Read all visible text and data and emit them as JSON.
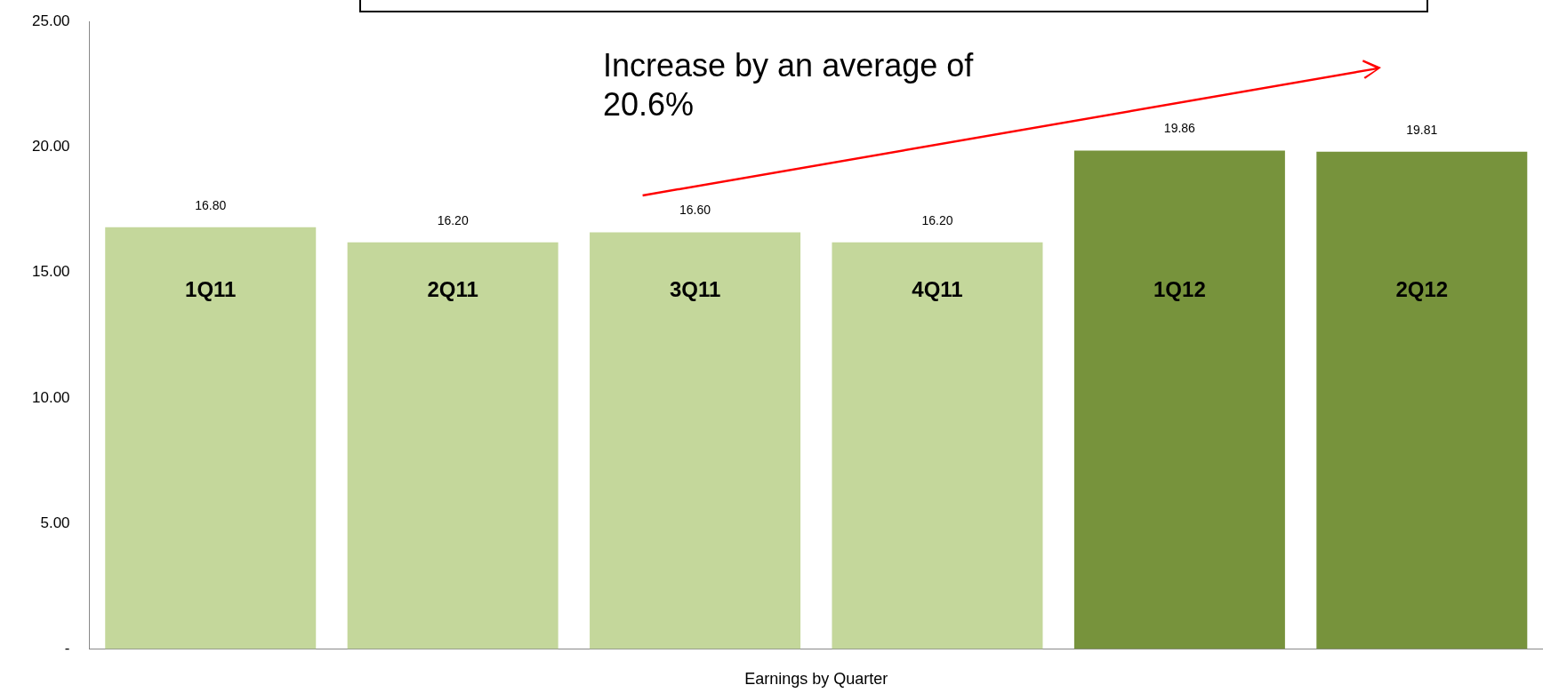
{
  "chart_data": {
    "type": "bar",
    "xlabel": "Earnings by Quarter",
    "categories": [
      "1Q11",
      "2Q11",
      "3Q11",
      "4Q11",
      "1Q12",
      "2Q12"
    ],
    "values": [
      16.8,
      16.2,
      16.6,
      16.2,
      19.86,
      19.81
    ],
    "colors": [
      "#c4d79b",
      "#c4d79b",
      "#c4d79b",
      "#c4d79b",
      "#77933c",
      "#77933c"
    ],
    "value_labels": [
      "16.80",
      "16.20",
      "16.60",
      "16.20",
      "19.86",
      "19.81"
    ],
    "ylim": [
      0,
      25
    ],
    "yticks": [
      {
        "value": 0,
        "label": "-"
      },
      {
        "value": 5,
        "label": "5.00"
      },
      {
        "value": 10,
        "label": "10.00"
      },
      {
        "value": 15,
        "label": "15.00"
      },
      {
        "value": 20,
        "label": "20.00"
      },
      {
        "value": 25,
        "label": "25.00"
      }
    ],
    "annotations": [
      "Increase by an average of 20.6%"
    ],
    "grid": false,
    "legend": false
  }
}
